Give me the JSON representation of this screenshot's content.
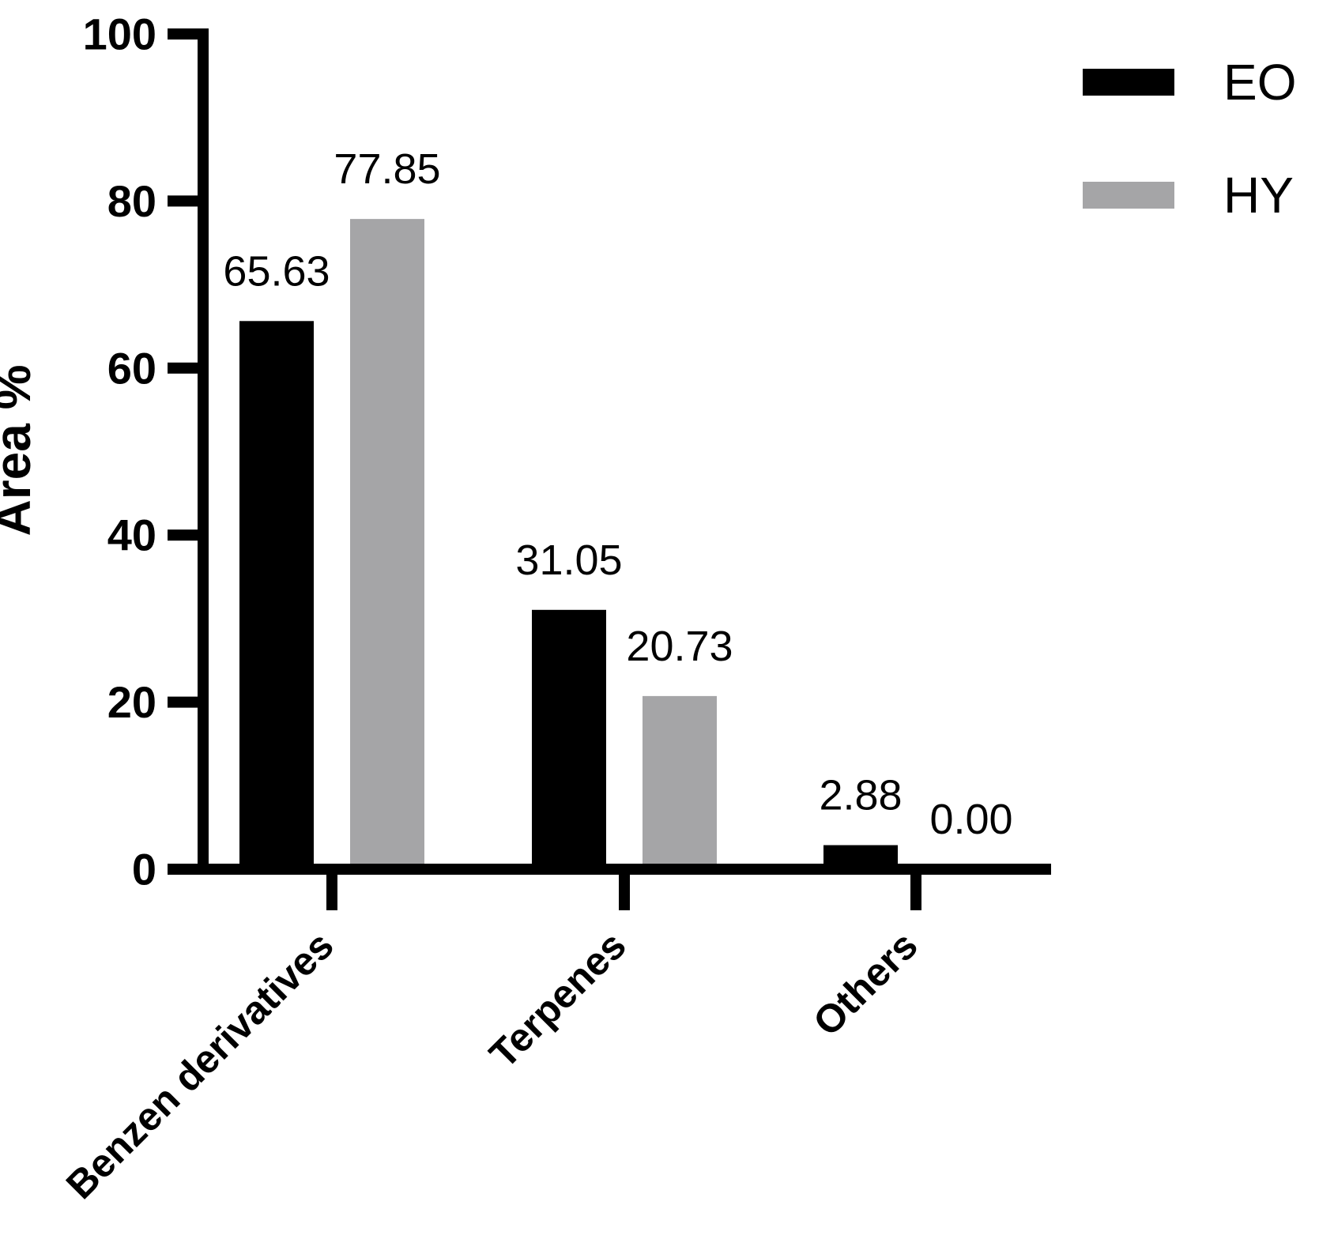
{
  "chart_data": {
    "type": "bar",
    "title": "",
    "categories": [
      "Benzen derivatives",
      "Terpenes",
      "Others"
    ],
    "series": [
      {
        "name": "EO",
        "color": "#000000",
        "values": [
          65.63,
          31.05,
          2.88
        ],
        "labels": [
          "65.63",
          "31.05",
          "2.88"
        ]
      },
      {
        "name": "HY",
        "color": "#A5A5A7",
        "values": [
          77.85,
          20.73,
          0.0
        ],
        "labels": [
          "77.85",
          "20.73",
          "0.00"
        ]
      }
    ],
    "ylabel": "Area %",
    "xlabel": "",
    "ylim": [
      0,
      100
    ],
    "yticks": [
      "0",
      "20",
      "40",
      "60",
      "80",
      "100"
    ],
    "grid": false,
    "legend_position": "top-right",
    "axis_color": "#000000",
    "text_color": "#000000",
    "background": "#ffffff"
  }
}
